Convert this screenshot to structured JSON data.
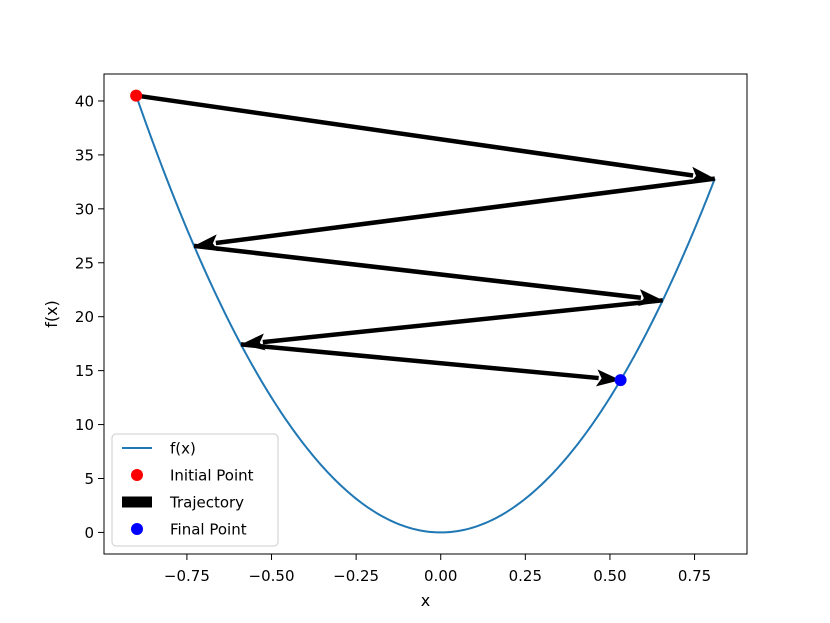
{
  "chart_data": {
    "type": "line",
    "title": "",
    "xlabel": "x",
    "ylabel": "f(x)",
    "xlim": [
      -0.995,
      0.905
    ],
    "ylim": [
      -2.0,
      42.5
    ],
    "xticks": [
      -0.75,
      -0.5,
      -0.25,
      0.0,
      0.25,
      0.5,
      0.75
    ],
    "xtick_labels": [
      "−0.75",
      "−0.50",
      "−0.25",
      "0.00",
      "0.25",
      "0.50",
      "0.75"
    ],
    "yticks": [
      0,
      5,
      10,
      15,
      20,
      25,
      30,
      35,
      40
    ],
    "ytick_labels": [
      "0",
      "5",
      "10",
      "15",
      "20",
      "25",
      "30",
      "35",
      "40"
    ],
    "grid": false,
    "legend_position": "lower-left",
    "function": {
      "name": "f(x)",
      "coefficient": 50,
      "exponent": 2,
      "x_range": [
        -0.9,
        0.81
      ]
    },
    "trajectory_points": [
      {
        "x": -0.9,
        "y": 40.5
      },
      {
        "x": 0.81,
        "y": 32.8
      },
      {
        "x": -0.729,
        "y": 26.57
      },
      {
        "x": 0.6561,
        "y": 21.52
      },
      {
        "x": -0.5905,
        "y": 17.43
      },
      {
        "x": 0.5314,
        "y": 14.12
      }
    ],
    "initial_point": {
      "x": -0.9,
      "y": 40.5
    },
    "final_point": {
      "x": 0.5314,
      "y": 14.12
    },
    "legend": [
      {
        "label": "f(x)",
        "type": "line",
        "color": "#1f77b4"
      },
      {
        "label": "Initial Point",
        "type": "dot",
        "color": "#ff0000"
      },
      {
        "label": "Trajectory",
        "type": "patch",
        "color": "#000000"
      },
      {
        "label": "Final Point",
        "type": "dot",
        "color": "#0000ff"
      }
    ],
    "colors": {
      "curve": "#1f77b4",
      "trajectory": "#000000",
      "initial": "#ff0000",
      "final": "#0000ff"
    }
  }
}
